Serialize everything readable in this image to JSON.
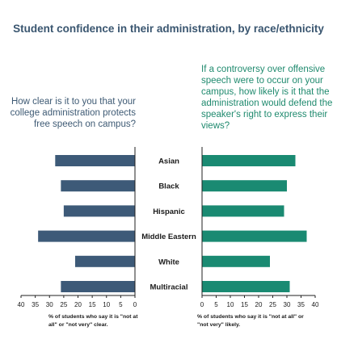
{
  "title": "Student confidence in their administration, by race/ethnicity",
  "left_question": "How clear is it to you that your college administration protects free speech on campus?",
  "right_question": "If a controversy over offensive speech were to occur on your campus, how likely is it that the administration would defend the speaker's right to express their views?",
  "left_note": "% of students who say it is \"not at all\" or \"not very\" clear.",
  "right_note": "% of students who say it is \"not at all\" or \"not very\" likely.",
  "colors": {
    "left_bar": "#3d5a78",
    "right_bar": "#1a8a72",
    "axis": "#222222",
    "text": "#1a1a1a"
  },
  "chart_data": {
    "type": "bar",
    "categories": [
      "Asian",
      "Black",
      "Hispanic",
      "Middle Eastern",
      "White",
      "Multiracial"
    ],
    "series": [
      {
        "side": "left",
        "values": [
          28,
          26,
          25,
          34,
          21,
          26
        ]
      },
      {
        "side": "right",
        "values": [
          33,
          30,
          29,
          37,
          24,
          31
        ]
      }
    ],
    "xlim": [
      0,
      40
    ],
    "ticks": [
      0,
      5,
      10,
      15,
      20,
      25,
      30,
      35,
      40
    ]
  }
}
